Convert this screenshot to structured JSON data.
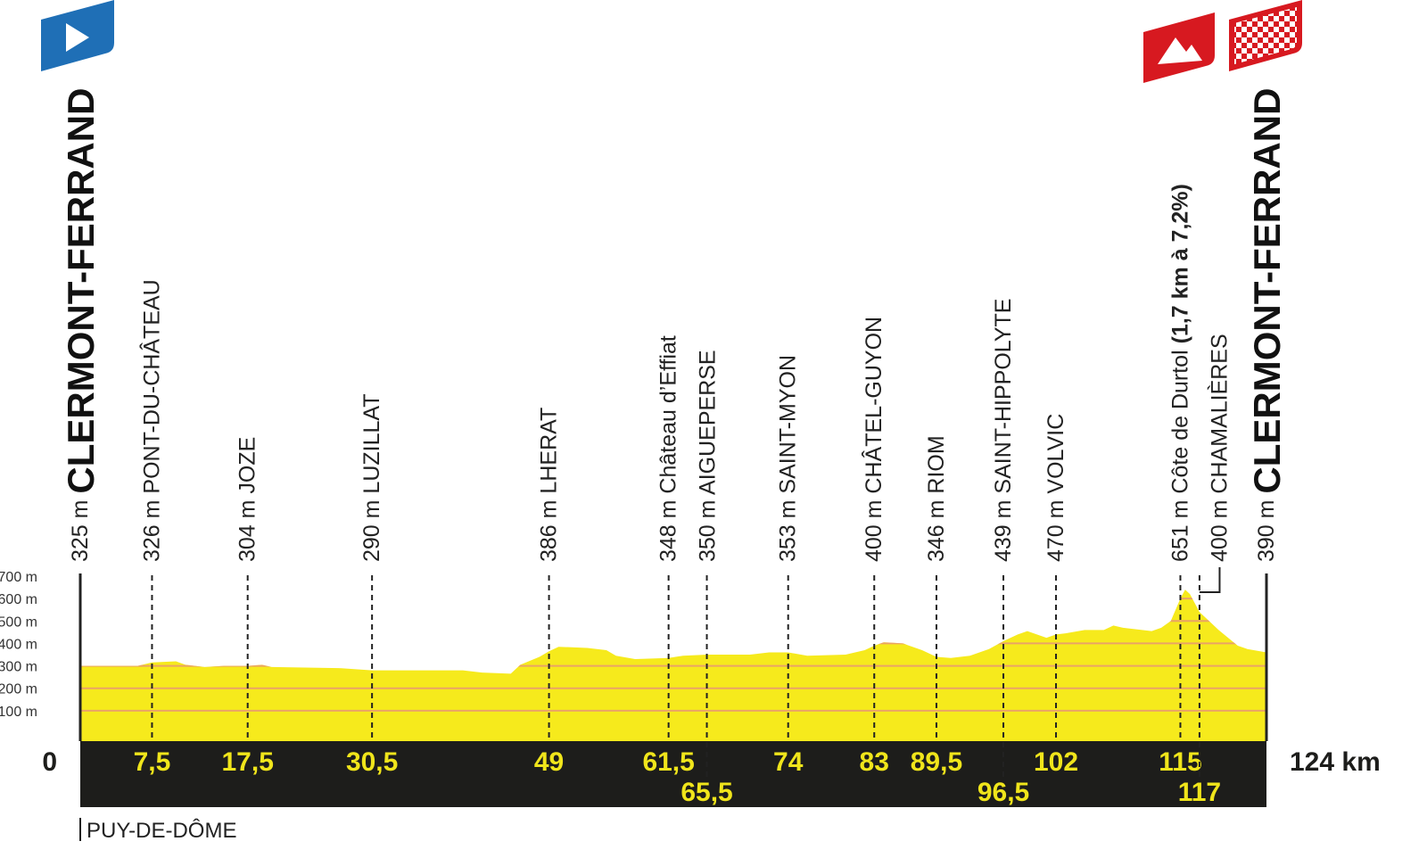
{
  "chart_data": {
    "type": "profile",
    "color": "#f6ea1c",
    "grid": true,
    "region": "PUY-DE-DÔME",
    "xlim": [
      0,
      124
    ],
    "xticks": [
      0,
      {
        "value": 124,
        "label": "124 km"
      }
    ],
    "ylim": [
      0,
      700
    ],
    "yticks": [
      {
        "value": 100,
        "label": "100 m"
      },
      {
        "value": 200,
        "label": "200 m"
      },
      {
        "value": 300,
        "label": "300 m"
      },
      {
        "value": 400,
        "label": "400 m"
      },
      {
        "value": 500,
        "label": "500 m"
      },
      {
        "value": 600,
        "label": "600 m"
      },
      {
        "value": 700,
        "label": "700 m"
      }
    ],
    "x": [
      0,
      6,
      7.5,
      10,
      11,
      13,
      15,
      17.5,
      19,
      20,
      27,
      30.5,
      40,
      42,
      45,
      46,
      48,
      49,
      50,
      53,
      55,
      56,
      58,
      61.5,
      63,
      65.5,
      70,
      72,
      74,
      76,
      80,
      82,
      83,
      84,
      86,
      88,
      89.5,
      91,
      93,
      95,
      96.5,
      98,
      99,
      100,
      101,
      102,
      103,
      105,
      107,
      108,
      109,
      110,
      111,
      112,
      113,
      114,
      115,
      115.5,
      116,
      117,
      118,
      119,
      121,
      122,
      124
    ],
    "values": [
      300,
      300,
      315,
      320,
      305,
      295,
      300,
      300,
      305,
      295,
      290,
      280,
      280,
      270,
      265,
      305,
      340,
      365,
      385,
      380,
      370,
      345,
      330,
      335,
      345,
      350,
      350,
      360,
      360,
      345,
      350,
      370,
      390,
      405,
      400,
      370,
      340,
      335,
      345,
      375,
      410,
      440,
      455,
      440,
      425,
      440,
      445,
      460,
      460,
      480,
      470,
      465,
      460,
      455,
      470,
      500,
      600,
      640,
      620,
      540,
      500,
      460,
      390,
      375,
      360
    ],
    "waypoints": [
      {
        "km": 0,
        "altitude": {
          "value": 325,
          "label": "325 m"
        },
        "name": "CLERMONT-FERRAND"
      },
      {
        "km": {
          "value": 7.5,
          "label": "7,5"
        },
        "altitude": {
          "value": 326,
          "label": "326 m"
        },
        "name": "PONT-DU-CHÂTEAU"
      },
      {
        "km": {
          "value": 17.5,
          "label": "17,5"
        },
        "altitude": {
          "value": 304,
          "label": "304 m"
        },
        "name": "JOZE"
      },
      {
        "km": {
          "value": 30.5,
          "label": "30,5"
        },
        "altitude": {
          "value": 290,
          "label": "290 m"
        },
        "name": "LUZILLAT"
      },
      {
        "km": 49,
        "altitude": {
          "value": 386,
          "label": "386 m"
        },
        "name": "LHERAT"
      },
      {
        "km": {
          "value": 61.5,
          "label": "61,5"
        },
        "altitude": {
          "value": 348,
          "label": "348 m"
        },
        "name": "Château d’Effiat"
      },
      {
        "km": {
          "value": 65.5,
          "label": "65,5"
        },
        "altitude": {
          "value": 350,
          "label": "350 m"
        },
        "name": "AIGUEPERSE"
      },
      {
        "km": 74,
        "altitude": {
          "value": 353,
          "label": "353 m"
        },
        "name": "SAINT-MYON"
      },
      {
        "km": 83,
        "altitude": {
          "value": 400,
          "label": "400 m"
        },
        "name": "CHÂTEL-GUYON"
      },
      {
        "km": {
          "value": 89.5,
          "label": "89,5"
        },
        "altitude": {
          "value": 346,
          "label": "346 m"
        },
        "name": "RIOM"
      },
      {
        "km": {
          "value": 96.5,
          "label": "96,5"
        },
        "altitude": {
          "value": 439,
          "label": "439 m"
        },
        "name": "SAINT-HIPPOLYTE"
      },
      {
        "km": 102,
        "altitude": {
          "value": 470,
          "label": "470 m"
        },
        "name": "VOLVIC"
      },
      {
        "km": 115,
        "altitude": {
          "value": 651,
          "label": "651 m"
        },
        "name": "Côte de Durtol",
        "climb": "(1,7 km à 7,2%)"
      },
      {
        "km": 117,
        "altitude": {
          "value": 400,
          "label": "400 m"
        },
        "name": "CHAMALIÈRES"
      },
      {
        "km": 124,
        "altitude": {
          "value": 390,
          "label": "390 m"
        },
        "name": "CLERMONT-FERRAND"
      }
    ]
  }
}
